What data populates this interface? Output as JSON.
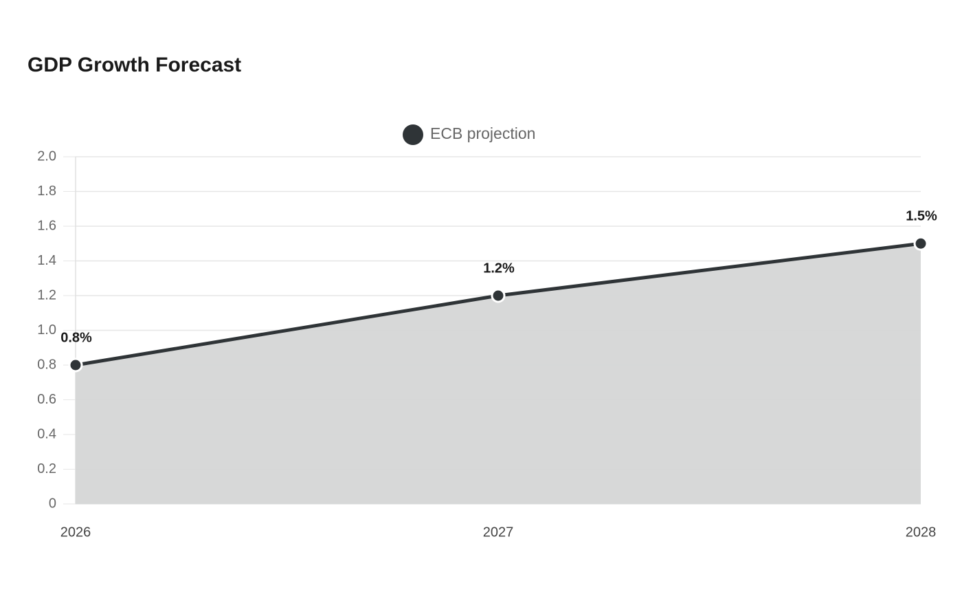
{
  "chart_data": {
    "type": "area",
    "title": "GDP Growth Forecast",
    "categories": [
      "2026",
      "2027",
      "2028"
    ],
    "series": [
      {
        "name": "ECB projection",
        "color": "#2f3437",
        "fill_color": "#d5d6d6",
        "values": [
          0.8,
          1.2,
          1.5
        ],
        "value_labels": [
          "0.8%",
          "1.2%",
          "1.5%"
        ]
      }
    ],
    "ylim": [
      0,
      2.0
    ],
    "yticks": [
      0,
      0.2,
      0.4,
      0.6,
      0.8,
      {
        "value": 1.0,
        "label": "1.0"
      },
      1.2,
      1.4,
      1.6,
      1.8,
      {
        "value": 2.0,
        "label": "2.0"
      }
    ],
    "grid": true,
    "legend": "top"
  }
}
